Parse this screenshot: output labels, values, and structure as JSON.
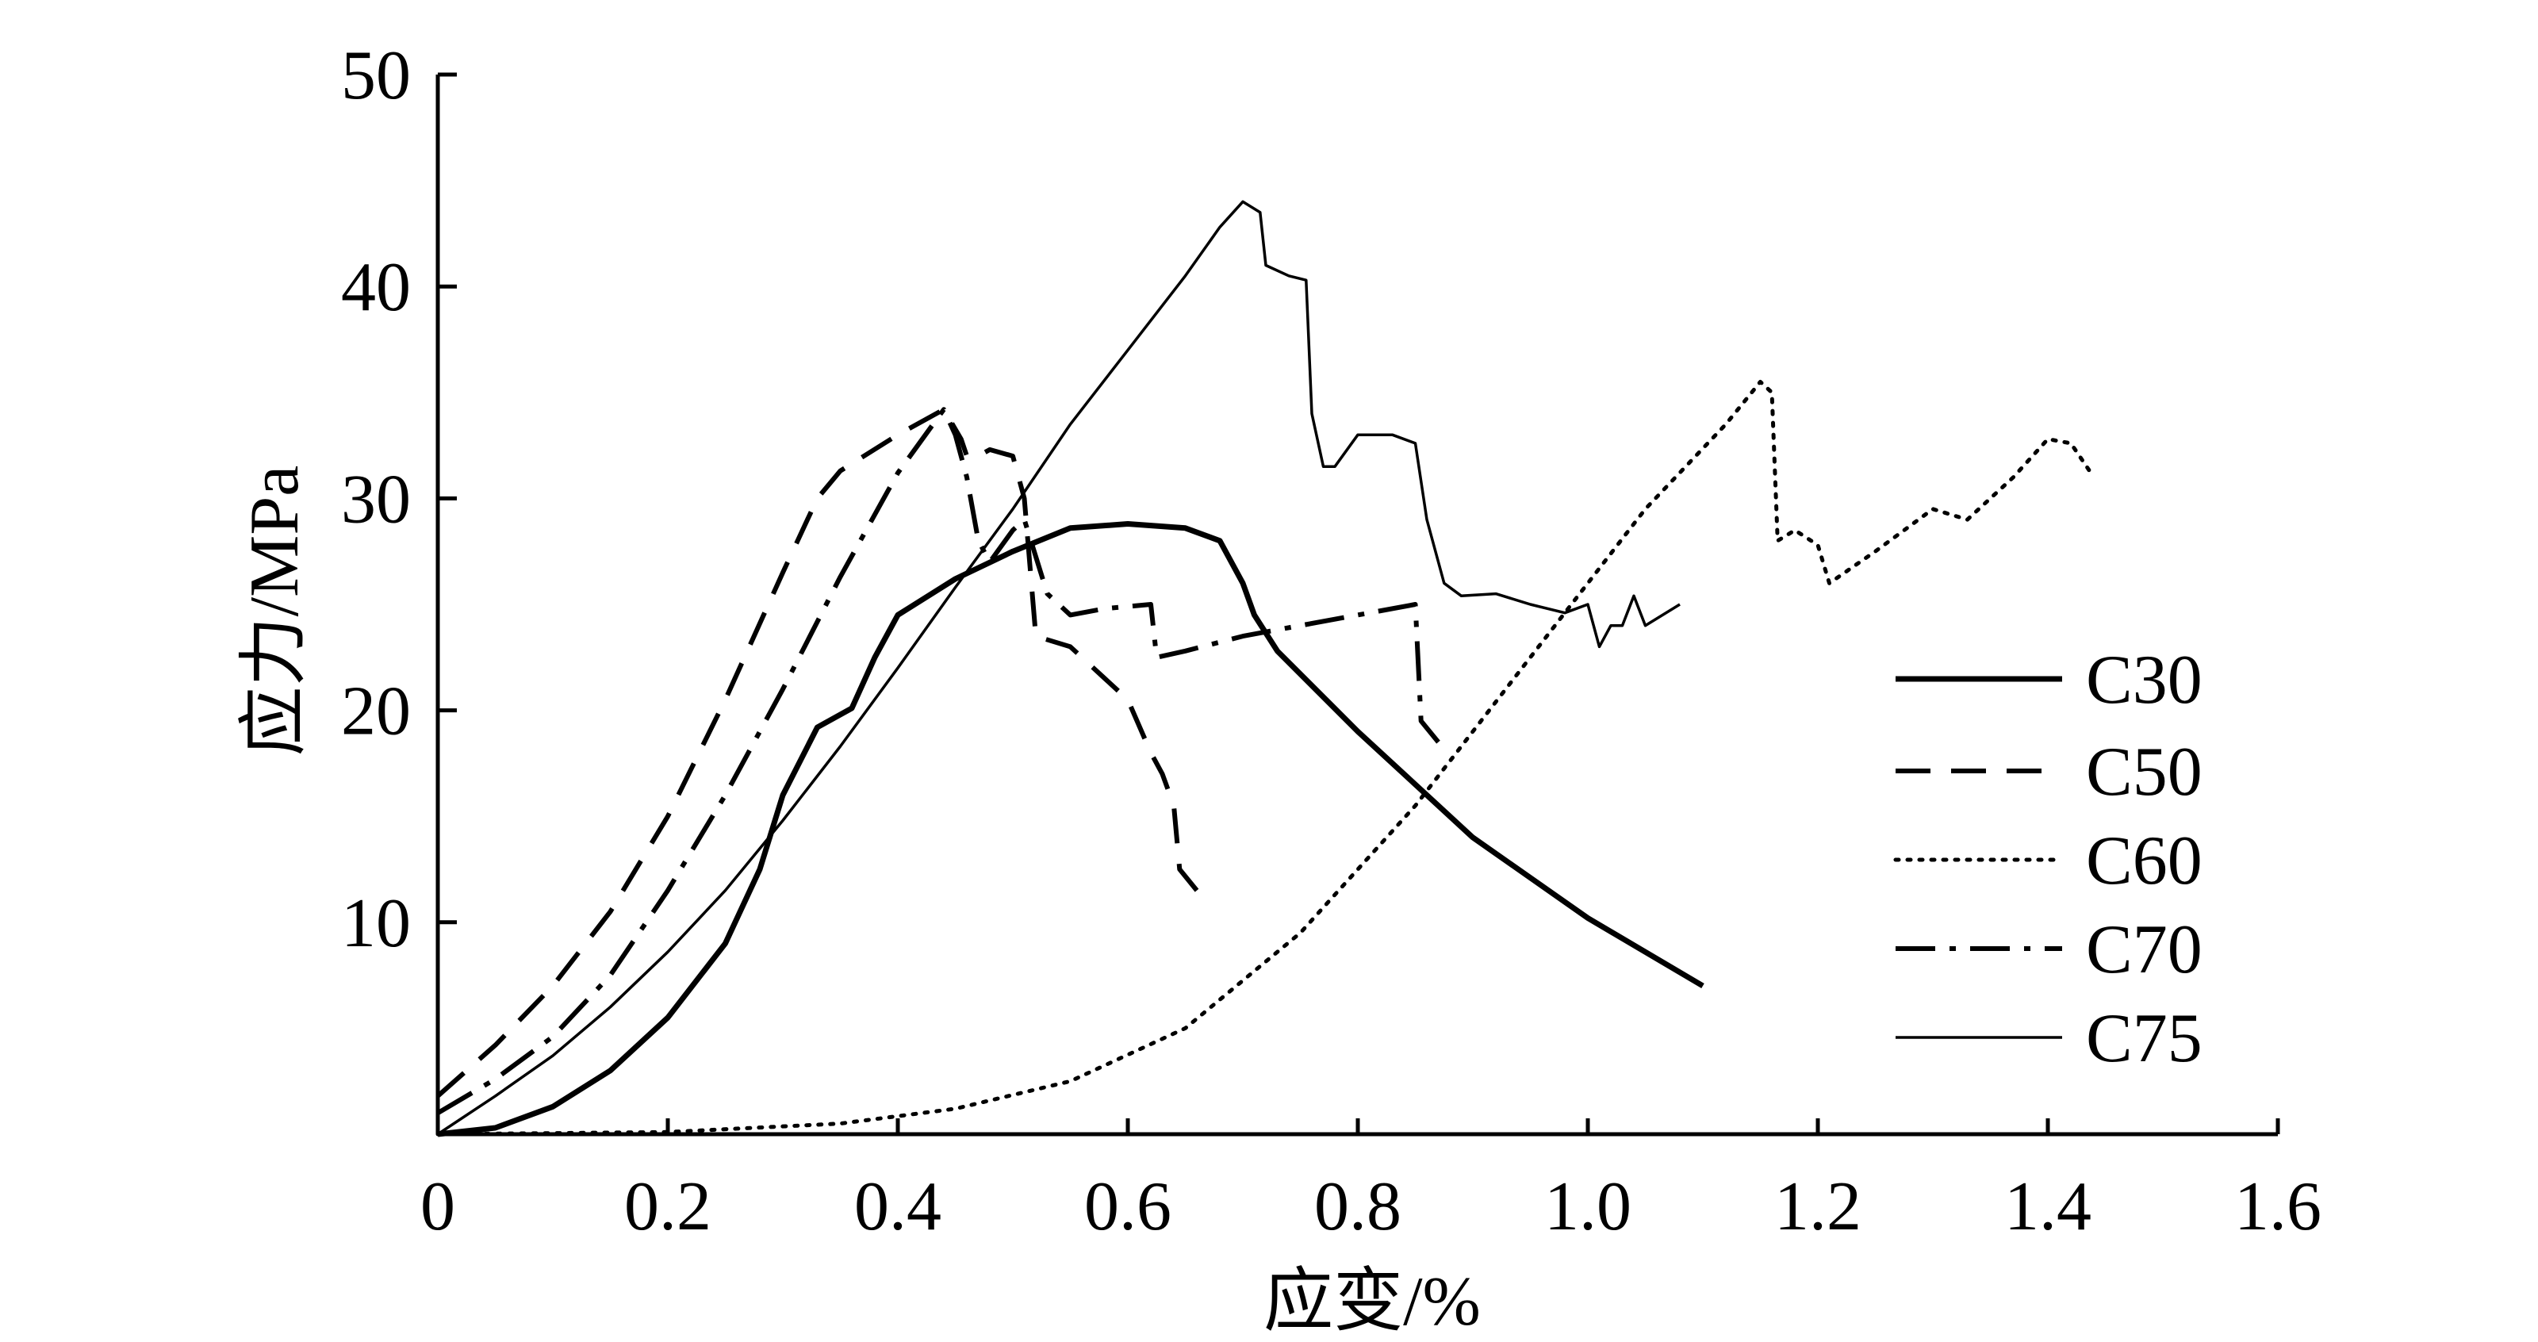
{
  "chart_data": {
    "type": "line",
    "xlabel": "应变/%",
    "ylabel": "应力/MPa",
    "xlim": [
      0,
      1.6
    ],
    "ylim": [
      0,
      50
    ],
    "x_ticks": [
      "0",
      "0.2",
      "0.4",
      "0.6",
      "0.8",
      "1.0",
      "1.2",
      "1.4",
      "1.6"
    ],
    "y_ticks": [
      "10",
      "20",
      "30",
      "40",
      "50"
    ],
    "grid": false,
    "legend_position": "right",
    "series": [
      {
        "name": "C30",
        "style": "solid-thick",
        "points": [
          [
            0.0,
            0.0
          ],
          [
            0.05,
            0.3
          ],
          [
            0.1,
            1.3
          ],
          [
            0.15,
            3.0
          ],
          [
            0.2,
            5.5
          ],
          [
            0.25,
            9.0
          ],
          [
            0.28,
            12.5
          ],
          [
            0.3,
            16.0
          ],
          [
            0.33,
            19.2
          ],
          [
            0.36,
            20.1
          ],
          [
            0.38,
            22.5
          ],
          [
            0.4,
            24.5
          ],
          [
            0.45,
            26.2
          ],
          [
            0.5,
            27.5
          ],
          [
            0.55,
            28.6
          ],
          [
            0.6,
            28.8
          ],
          [
            0.65,
            28.6
          ],
          [
            0.68,
            28.0
          ],
          [
            0.7,
            26.0
          ],
          [
            0.71,
            24.5
          ],
          [
            0.73,
            22.8
          ],
          [
            0.8,
            19.0
          ],
          [
            0.9,
            14.0
          ],
          [
            1.0,
            10.2
          ],
          [
            1.1,
            7.0
          ]
        ]
      },
      {
        "name": "C50",
        "style": "dashed",
        "points": [
          [
            0.0,
            1.8
          ],
          [
            0.05,
            4.2
          ],
          [
            0.1,
            7.0
          ],
          [
            0.15,
            10.5
          ],
          [
            0.2,
            15.0
          ],
          [
            0.25,
            20.5
          ],
          [
            0.3,
            26.5
          ],
          [
            0.33,
            30.0
          ],
          [
            0.35,
            31.3
          ],
          [
            0.4,
            33.0
          ],
          [
            0.44,
            34.2
          ],
          [
            0.455,
            32.8
          ],
          [
            0.46,
            32.0
          ],
          [
            0.47,
            32.0
          ],
          [
            0.48,
            32.3
          ],
          [
            0.5,
            32.0
          ],
          [
            0.51,
            30.0
          ],
          [
            0.52,
            23.5
          ],
          [
            0.55,
            23.0
          ],
          [
            0.58,
            21.5
          ],
          [
            0.6,
            20.5
          ],
          [
            0.62,
            18.0
          ],
          [
            0.63,
            17.0
          ],
          [
            0.64,
            15.5
          ],
          [
            0.645,
            12.5
          ],
          [
            0.66,
            11.5
          ]
        ]
      },
      {
        "name": "C60",
        "style": "dotted",
        "points": [
          [
            0.0,
            0.0
          ],
          [
            0.2,
            0.1
          ],
          [
            0.35,
            0.5
          ],
          [
            0.45,
            1.2
          ],
          [
            0.55,
            2.5
          ],
          [
            0.65,
            5.0
          ],
          [
            0.75,
            9.5
          ],
          [
            0.85,
            15.5
          ],
          [
            0.95,
            22.5
          ],
          [
            1.05,
            29.5
          ],
          [
            1.12,
            33.5
          ],
          [
            1.15,
            35.5
          ],
          [
            1.16,
            35.0
          ],
          [
            1.165,
            28.0
          ],
          [
            1.18,
            28.5
          ],
          [
            1.2,
            27.8
          ],
          [
            1.21,
            26.0
          ],
          [
            1.25,
            27.5
          ],
          [
            1.3,
            29.5
          ],
          [
            1.33,
            29.0
          ],
          [
            1.37,
            31.0
          ],
          [
            1.4,
            32.8
          ],
          [
            1.42,
            32.6
          ],
          [
            1.44,
            31.0
          ]
        ]
      },
      {
        "name": "C70",
        "style": "dash-dot",
        "points": [
          [
            0.0,
            1.0
          ],
          [
            0.05,
            2.6
          ],
          [
            0.1,
            4.6
          ],
          [
            0.15,
            7.5
          ],
          [
            0.2,
            11.5
          ],
          [
            0.25,
            16.0
          ],
          [
            0.3,
            21.0
          ],
          [
            0.35,
            26.3
          ],
          [
            0.4,
            31.2
          ],
          [
            0.44,
            34.2
          ],
          [
            0.45,
            33.0
          ],
          [
            0.46,
            31.0
          ],
          [
            0.47,
            28.0
          ],
          [
            0.48,
            27.0
          ],
          [
            0.5,
            28.5
          ],
          [
            0.51,
            29.0
          ],
          [
            0.53,
            25.5
          ],
          [
            0.55,
            24.5
          ],
          [
            0.58,
            24.8
          ],
          [
            0.62,
            25.0
          ],
          [
            0.625,
            22.5
          ],
          [
            0.65,
            22.8
          ],
          [
            0.7,
            23.5
          ],
          [
            0.75,
            24.0
          ],
          [
            0.8,
            24.5
          ],
          [
            0.85,
            25.0
          ],
          [
            0.855,
            19.5
          ],
          [
            0.87,
            18.5
          ]
        ]
      },
      {
        "name": "C75",
        "style": "solid-thin",
        "points": [
          [
            0.0,
            0.0
          ],
          [
            0.05,
            1.8
          ],
          [
            0.1,
            3.7
          ],
          [
            0.15,
            6.0
          ],
          [
            0.2,
            8.6
          ],
          [
            0.25,
            11.5
          ],
          [
            0.3,
            14.8
          ],
          [
            0.35,
            18.3
          ],
          [
            0.4,
            22.0
          ],
          [
            0.45,
            25.8
          ],
          [
            0.5,
            29.5
          ],
          [
            0.55,
            33.5
          ],
          [
            0.6,
            37.0
          ],
          [
            0.65,
            40.5
          ],
          [
            0.68,
            42.8
          ],
          [
            0.7,
            44.0
          ],
          [
            0.715,
            43.5
          ],
          [
            0.72,
            41.0
          ],
          [
            0.74,
            40.5
          ],
          [
            0.755,
            40.3
          ],
          [
            0.76,
            34.0
          ],
          [
            0.77,
            31.5
          ],
          [
            0.78,
            31.5
          ],
          [
            0.8,
            33.0
          ],
          [
            0.83,
            33.0
          ],
          [
            0.85,
            32.6
          ],
          [
            0.86,
            29.0
          ],
          [
            0.875,
            26.0
          ],
          [
            0.89,
            25.4
          ],
          [
            0.92,
            25.5
          ],
          [
            0.95,
            25.0
          ],
          [
            0.98,
            24.6
          ],
          [
            1.0,
            25.0
          ],
          [
            1.01,
            23.0
          ],
          [
            1.02,
            24.0
          ],
          [
            1.03,
            24.0
          ],
          [
            1.04,
            25.4
          ],
          [
            1.05,
            24.0
          ],
          [
            1.08,
            25.0
          ]
        ]
      }
    ]
  }
}
